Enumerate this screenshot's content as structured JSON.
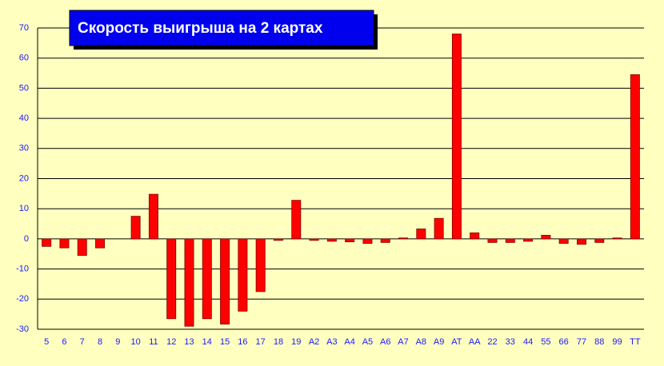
{
  "chart_data": {
    "type": "bar",
    "title": "Скорость выигрыша на 2 картах",
    "categories": [
      "5",
      "6",
      "7",
      "8",
      "9",
      "10",
      "11",
      "12",
      "13",
      "14",
      "15",
      "16",
      "17",
      "18",
      "19",
      "A2",
      "A3",
      "A4",
      "A5",
      "A6",
      "A7",
      "A8",
      "A9",
      "AT",
      "AA",
      "22",
      "33",
      "44",
      "55",
      "66",
      "77",
      "88",
      "99",
      "TT"
    ],
    "values": [
      -2.5,
      -3,
      -5.5,
      -3,
      0,
      7.5,
      14.8,
      -26.5,
      -29,
      -26.5,
      -28.3,
      -24,
      -17.5,
      -0.5,
      12.8,
      -0.5,
      -0.8,
      -1,
      -1.5,
      -1.2,
      0.3,
      3.3,
      6.8,
      68,
      2,
      -1.2,
      -1.2,
      -0.8,
      1.2,
      -1.5,
      -1.8,
      -1.2,
      0.3,
      54.5
    ],
    "color": "#ff0000",
    "ylim": [
      -30,
      70
    ],
    "yticks": [
      -30,
      -20,
      -10,
      0,
      10,
      20,
      30,
      40,
      50,
      60,
      70
    ],
    "grid": true
  }
}
